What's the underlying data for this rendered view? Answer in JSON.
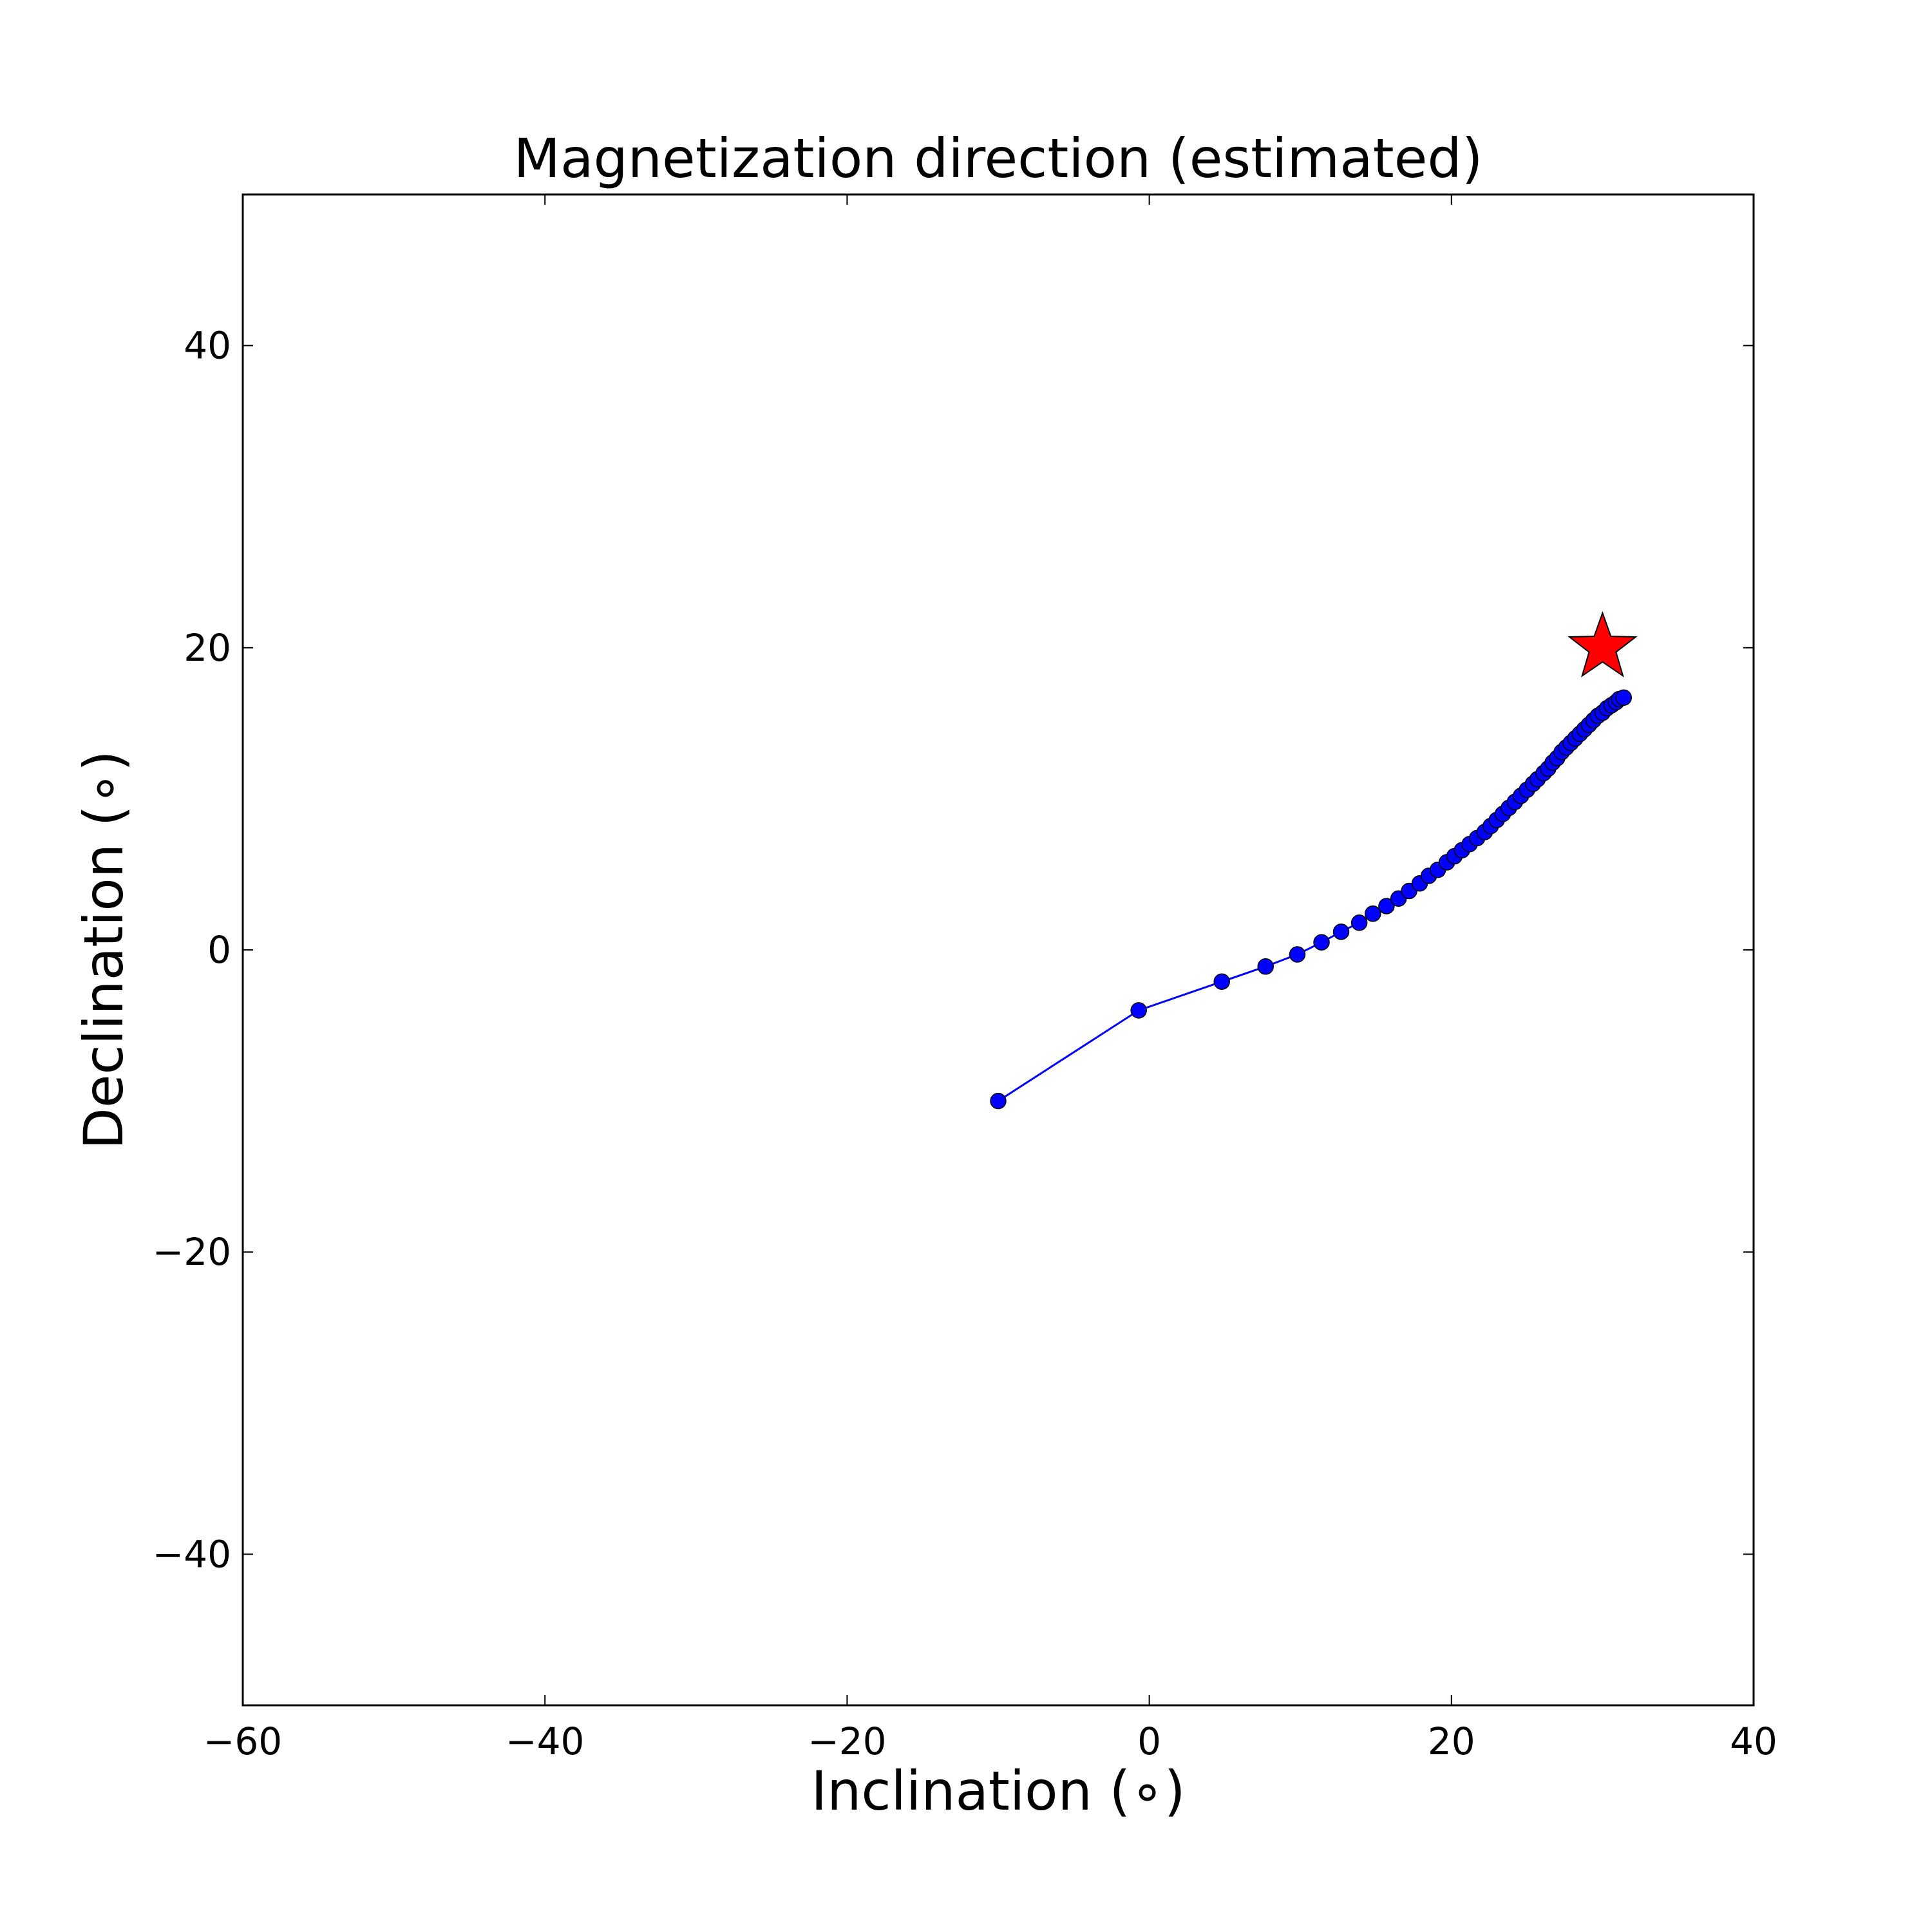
{
  "chart_data": {
    "type": "scatter",
    "title": "Magnetization direction (estimated)",
    "xlabel": "Inclination (∘)",
    "ylabel": "Declination (∘)",
    "xlim": [
      -60,
      40
    ],
    "ylim": [
      -50,
      50
    ],
    "xticks": [
      -60,
      -40,
      -20,
      0,
      20,
      40
    ],
    "yticks": [
      -40,
      -20,
      0,
      20,
      40
    ],
    "xtick_labels": [
      "−60",
      "−40",
      "−20",
      "0",
      "20",
      "40"
    ],
    "ytick_labels": [
      "−40",
      "−20",
      "0",
      "20",
      "40"
    ],
    "grid": false,
    "series": [
      {
        "style": "line-with-markers",
        "color": "#0000ff",
        "x": [
          -10.0,
          -0.7,
          4.8,
          7.7,
          9.8,
          11.4,
          12.7,
          13.9,
          14.8,
          15.7,
          16.5,
          17.2,
          17.9,
          18.5,
          19.1,
          19.7,
          20.2,
          20.7,
          21.2,
          21.7,
          22.2,
          22.6,
          23.0,
          23.4,
          23.8,
          24.2,
          24.6,
          25.0,
          25.4,
          25.7,
          26.1,
          26.4,
          26.7,
          27.0,
          27.3,
          27.6,
          27.9,
          28.2,
          28.5,
          28.8,
          29.1,
          29.4,
          29.7,
          30.0,
          30.3,
          30.6,
          30.9,
          31.1,
          31.4
        ],
        "y": [
          -10.0,
          -4.0,
          -2.1,
          -1.1,
          -0.3,
          0.5,
          1.2,
          1.8,
          2.4,
          2.9,
          3.4,
          3.9,
          4.4,
          4.9,
          5.3,
          5.8,
          6.2,
          6.6,
          7.0,
          7.4,
          7.8,
          8.2,
          8.6,
          9.0,
          9.4,
          9.8,
          10.2,
          10.6,
          11.0,
          11.3,
          11.7,
          12.0,
          12.4,
          12.7,
          13.1,
          13.4,
          13.7,
          14.0,
          14.3,
          14.6,
          14.9,
          15.2,
          15.5,
          15.7,
          16.0,
          16.2,
          16.4,
          16.6,
          16.7
        ]
      },
      {
        "style": "star-marker",
        "color": "#ff0000",
        "x": [
          30.0
        ],
        "y": [
          20.0
        ]
      }
    ]
  }
}
